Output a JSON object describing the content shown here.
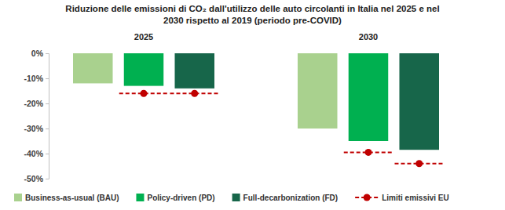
{
  "chart_data": {
    "type": "bar",
    "title": [
      "Riduzione delle emissioni di CO₂ dall'utilizzo delle auto circolanti in Italia nel 2025 e nel",
      "2030 rispetto al 2019 (periodo pre-COVID)"
    ],
    "categories": [
      "2025",
      "2030"
    ],
    "series": [
      {
        "name": "Business-as-usual (BAU)",
        "type": "bar",
        "color": "#a9d18e",
        "values": [
          -12,
          -30
        ]
      },
      {
        "name": "Policy-driven (PD)",
        "type": "bar",
        "color": "#00b050",
        "values": [
          -13,
          -35
        ]
      },
      {
        "name": "Full-decarbonization (FD)",
        "type": "bar",
        "color": "#17664a",
        "values": [
          -14,
          -38.5
        ]
      },
      {
        "name": "Limiti emissivi EU",
        "type": "limit",
        "color": "#c00000",
        "line_style": "dashed",
        "marker": "circle",
        "values": [
          [
            null,
            -16,
            -16
          ],
          [
            null,
            -39.5,
            -44
          ]
        ]
      }
    ],
    "ylim": [
      -50,
      0
    ],
    "yticks": [
      {
        "value": 0,
        "label": "0%"
      },
      {
        "value": -10,
        "label": "-10%"
      },
      {
        "value": -20,
        "label": "-20%"
      },
      {
        "value": -30,
        "label": "-30%"
      },
      {
        "value": -40,
        "label": "-40%"
      },
      {
        "value": -50,
        "label": "-50%"
      }
    ],
    "grid": false,
    "legend": "bottom"
  }
}
